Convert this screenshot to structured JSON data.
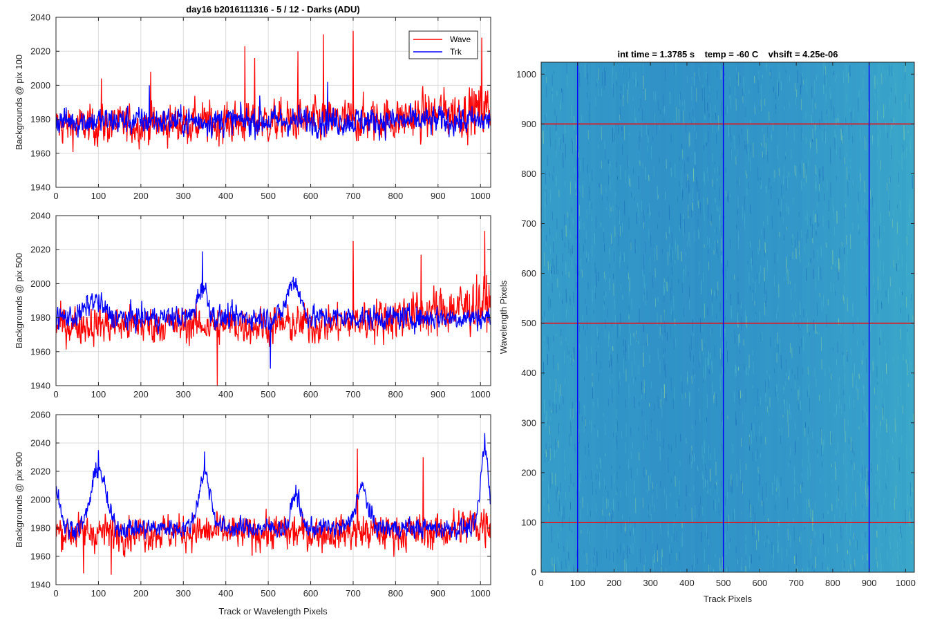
{
  "chart_data": [
    {
      "type": "line",
      "title": "day16 b2016111316 - 5 / 12 - Darks (ADU)",
      "xlabel": "",
      "ylabel": "Backgrounds @ pix 100",
      "xlim": [
        0,
        1024
      ],
      "ylim": [
        1940,
        2040
      ],
      "xticks": [
        0,
        100,
        200,
        300,
        400,
        500,
        600,
        700,
        800,
        900,
        1000
      ],
      "yticks": [
        1940,
        1960,
        1980,
        2000,
        2020,
        2040
      ],
      "grid": true,
      "legend": {
        "position": "top-right",
        "entries": [
          "Wave",
          "Trk"
        ]
      },
      "series": [
        {
          "name": "Wave",
          "color": "#ff0000",
          "baseline": 1976,
          "noise": 8,
          "spikes": [
            [
              107,
              2004
            ],
            [
              223,
              2008
            ],
            [
              445,
              2023
            ],
            [
              468,
              2016
            ],
            [
              570,
              2020
            ],
            [
              630,
              2030
            ],
            [
              700,
              2032
            ],
            [
              1003,
              2028
            ]
          ],
          "trend": [
            [
              0,
              0
            ],
            [
              800,
              4
            ],
            [
              1024,
              10
            ]
          ]
        },
        {
          "name": "Trk",
          "color": "#0000ff",
          "baseline": 1979,
          "noise": 6,
          "bumps": [],
          "spikes": [
            [
              220,
              2000
            ],
            [
              480,
              1994
            ],
            [
              640,
              2002
            ]
          ]
        }
      ]
    },
    {
      "type": "line",
      "title": "",
      "xlabel": "",
      "ylabel": "Backgrounds @ pix 500",
      "xlim": [
        0,
        1024
      ],
      "ylim": [
        1940,
        2040
      ],
      "xticks": [
        0,
        100,
        200,
        300,
        400,
        500,
        600,
        700,
        800,
        900,
        1000
      ],
      "yticks": [
        1940,
        1960,
        1980,
        2000,
        2020,
        2040
      ],
      "grid": true,
      "series": [
        {
          "name": "Wave",
          "color": "#ff0000",
          "baseline": 1976,
          "noise": 8,
          "spikes": [
            [
              380,
              1940
            ],
            [
              700,
              2025
            ],
            [
              860,
              2017
            ],
            [
              1010,
              2031
            ]
          ],
          "trend": [
            [
              0,
              0
            ],
            [
              650,
              0
            ],
            [
              1024,
              12
            ]
          ]
        },
        {
          "name": "Trk",
          "color": "#0000ff",
          "baseline": 1980,
          "noise": 5,
          "bumps": [
            [
              90,
              10,
              40
            ],
            [
              345,
              18,
              25
            ],
            [
              560,
              22,
              30
            ]
          ],
          "spikes": [
            [
              345,
              2019
            ],
            [
              505,
              1950
            ]
          ]
        }
      ]
    },
    {
      "type": "line",
      "title": "",
      "xlabel": "Track or Wavelength Pixels",
      "ylabel": "Backgrounds @ pix 900",
      "xlim": [
        0,
        1024
      ],
      "ylim": [
        1940,
        2060
      ],
      "xticks": [
        0,
        100,
        200,
        300,
        400,
        500,
        600,
        700,
        800,
        900,
        1000
      ],
      "yticks": [
        1940,
        1960,
        1980,
        2000,
        2020,
        2040,
        2060
      ],
      "grid": true,
      "series": [
        {
          "name": "Wave",
          "color": "#ff0000",
          "baseline": 1977,
          "noise": 9,
          "spikes": [
            [
              65,
              1948
            ],
            [
              130,
              1947
            ],
            [
              710,
              2036
            ],
            [
              865,
              2030
            ]
          ],
          "trend": [
            [
              0,
              0
            ],
            [
              900,
              0
            ],
            [
              1024,
              8
            ]
          ]
        },
        {
          "name": "Trk",
          "color": "#0000ff",
          "baseline": 1980,
          "noise": 5,
          "bumps": [
            [
              0,
              28,
              20
            ],
            [
              100,
              42,
              35
            ],
            [
              350,
              38,
              30
            ],
            [
              565,
              25,
              20
            ],
            [
              720,
              28,
              30
            ],
            [
              1010,
              55,
              20
            ]
          ],
          "spikes": [
            [
              100,
              2035
            ],
            [
              350,
              2034
            ],
            [
              1010,
              2047
            ]
          ]
        }
      ]
    },
    {
      "type": "heatmap",
      "title": "int time = 1.3785 s    temp = -60 C    vhsift = 4.25e-06",
      "xlabel": "Track Pixels",
      "ylabel": "Wavelength Pixels",
      "xlim": [
        0,
        1024
      ],
      "ylim": [
        0,
        1024
      ],
      "xticks": [
        0,
        100,
        200,
        300,
        400,
        500,
        600,
        700,
        800,
        900,
        1000
      ],
      "yticks": [
        0,
        100,
        200,
        300,
        400,
        500,
        600,
        700,
        800,
        900,
        1000
      ],
      "colormap": "parula",
      "vertical_lines": {
        "color": "#0000ff",
        "x": [
          100,
          500,
          900
        ]
      },
      "horizontal_lines": {
        "color": "#ff0000",
        "y": [
          100,
          500,
          900
        ]
      }
    }
  ]
}
